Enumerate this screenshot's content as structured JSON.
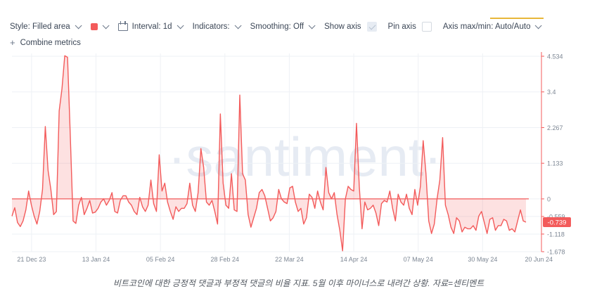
{
  "toolbar": {
    "style_label": "Style: Filled area",
    "interval_label": "Interval: 1d",
    "indicators_label": "Indicators:",
    "smoothing_label": "Smoothing: Off",
    "show_axis_label": "Show axis",
    "pin_axis_label": "Pin axis",
    "axis_maxmin_label": "Axis max/min: Auto/Auto",
    "combine_label": "Combine metrics",
    "series_color": "#f35b5b"
  },
  "watermark": "·santiment·",
  "caption": "비트코인에 대한 긍정적 댓글과 부정적 댓글의 비율 지표. 5월 이후 마이너스로 내려간 상황. 자료=센티멘트",
  "chart_data": {
    "type": "area",
    "title": "",
    "xlabel": "",
    "ylabel": "",
    "x_start": "2023-12-14",
    "x_end": "2024-06-20",
    "x_ticks": [
      "21 Dec 23",
      "13 Jan 24",
      "05 Feb 24",
      "28 Feb 24",
      "22 Mar 24",
      "14 Apr 24",
      "07 May 24",
      "30 May 24",
      "20 Jun 24"
    ],
    "x_tick_dates": [
      "2023-12-21",
      "2024-01-13",
      "2024-02-05",
      "2024-02-28",
      "2024-03-22",
      "2024-04-14",
      "2024-05-07",
      "2024-05-30",
      "2024-06-20"
    ],
    "y_ticks": [
      "4.534",
      "3.4",
      "2.267",
      "1.133",
      "0",
      "-0.559",
      "-1.118",
      "-1.678"
    ],
    "y_tick_values": [
      4.534,
      3.4,
      2.267,
      1.133,
      0,
      -0.559,
      -1.118,
      -1.678
    ],
    "ylim": [
      -1.678,
      4.534
    ],
    "last_value_label": "-0.739",
    "grid": true,
    "series": [
      {
        "values": [
          -0.55,
          -0.28,
          -0.75,
          -0.88,
          -0.7,
          -0.35,
          0.25,
          -0.2,
          -0.55,
          -0.8,
          -0.4,
          0.3,
          2.3,
          0.9,
          0.3,
          -0.5,
          -0.4,
          2.8,
          3.5,
          4.55,
          4.5,
          2.0,
          -0.7,
          -0.78,
          -0.2,
          0.05,
          -0.5,
          -0.3,
          -0.05,
          -0.45,
          -0.42,
          -0.3,
          -0.1,
          0.0,
          -0.2,
          -0.05,
          0.2,
          -0.4,
          -0.45,
          -0.05,
          0.1,
          0.1,
          -0.1,
          -0.2,
          -0.4,
          -0.5,
          0.05,
          -0.25,
          -0.4,
          -0.2,
          0.6,
          -0.15,
          -0.4,
          1.4,
          0.25,
          0.5,
          -0.1,
          -0.4,
          -0.65,
          -0.25,
          -0.4,
          -0.3,
          -0.3,
          -0.15,
          0.5,
          -0.2,
          -0.4,
          0.2,
          1.6,
          1.0,
          -0.1,
          -0.2,
          -0.05,
          -0.4,
          -0.8,
          2.7,
          0.5,
          -0.2,
          -0.3,
          0.8,
          -0.35,
          -0.4,
          3.3,
          0.8,
          0.6,
          -0.5,
          -0.9,
          -0.6,
          -0.3,
          0.2,
          0.3,
          0.1,
          -0.3,
          -0.7,
          -0.6,
          -0.4,
          0.3,
          0.0,
          -0.1,
          -0.15,
          0.35,
          0.4,
          -0.1,
          -0.4,
          -0.3,
          -0.8,
          -0.6,
          0.15,
          0.05,
          -0.3,
          0.25,
          -0.1,
          -0.35,
          1.0,
          0.2,
          0.0,
          0.2,
          -0.5,
          -1.0,
          -1.65,
          0.0,
          0.4,
          0.3,
          0.25,
          2.4,
          0.4,
          -0.95,
          -0.1,
          -0.35,
          -0.3,
          -0.2,
          -0.45,
          -0.85,
          -0.15,
          -0.05,
          -0.1,
          0.25,
          -0.3,
          -0.7,
          0.15,
          -0.1,
          -0.2,
          0.15,
          -0.3,
          -0.5,
          0.3,
          -0.2,
          0.4,
          1.85,
          0.8,
          -0.7,
          -1.1,
          -0.8,
          0.0,
          0.6,
          1.95,
          -0.2,
          -0.5,
          -0.9,
          -1.1,
          -0.6,
          -0.7,
          -1.05,
          -0.9,
          -0.95,
          -0.95,
          -0.85,
          -1.0,
          -0.55,
          -0.4,
          -0.75,
          -1.1,
          -0.65,
          -0.6,
          -1.0,
          -0.85,
          -0.85,
          -0.65,
          -0.7,
          -1.0,
          -0.95,
          -1.05,
          -0.7,
          -0.35,
          -0.7,
          -0.739
        ]
      }
    ]
  }
}
